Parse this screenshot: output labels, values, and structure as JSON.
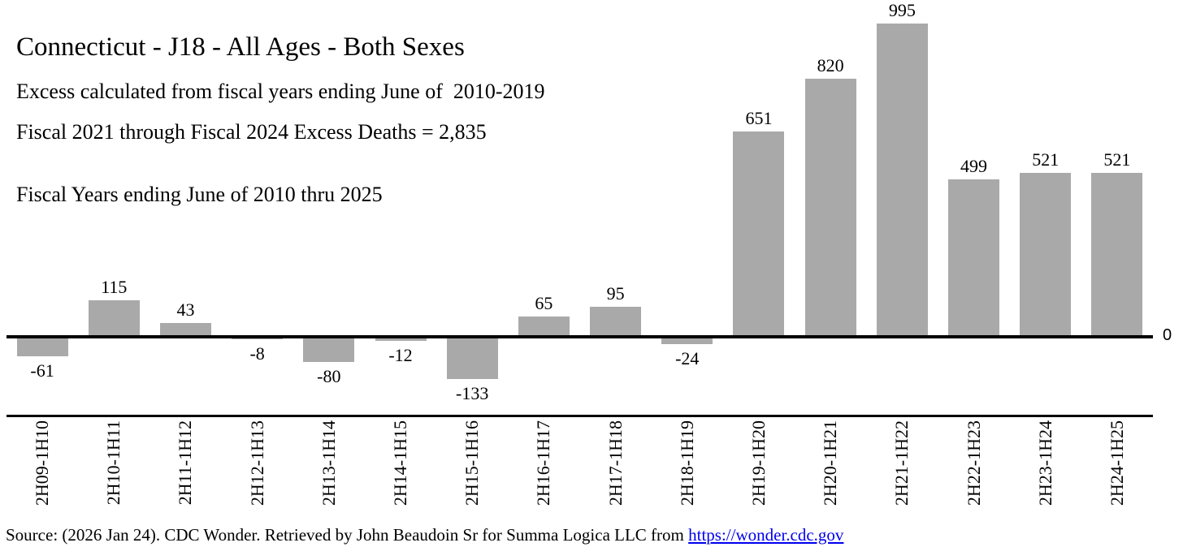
{
  "header": {
    "title": "Connecticut - J18 - All Ages - Both Sexes",
    "line_baseline": "Excess calculated from fiscal years ending June of  2010-2019",
    "line_excess_total": "Fiscal 2021 through Fiscal 2024 Excess Deaths = 2,835",
    "line_range": "Fiscal Years ending June of 2010 thru 2025"
  },
  "chart_data": {
    "type": "bar",
    "title": "Connecticut - J18 - All Ages - Both Sexes",
    "categories": [
      "2H09-1H10",
      "2H10-1H11",
      "2H11-1H12",
      "2H12-1H13",
      "2H13-1H14",
      "2H14-1H15",
      "2H15-1H16",
      "2H16-1H17",
      "2H17-1H18",
      "2H18-1H19",
      "2H19-1H20",
      "2H20-1H21",
      "2H21-1H22",
      "2H22-1H23",
      "2H23-1H24",
      "2H24-1H25"
    ],
    "values": [
      -61,
      115,
      43,
      -8,
      -80,
      -12,
      -133,
      65,
      95,
      -24,
      651,
      820,
      995,
      499,
      521,
      521
    ],
    "value_labels_shown": true,
    "baseline_value": 0,
    "baseline_tick_label": "0",
    "xlabel": "",
    "ylabel": "",
    "ylim": [
      -250,
      1070
    ],
    "grid": false,
    "legend": "none",
    "bar_color": "#a9a9a9",
    "axis_color": "#000000"
  },
  "footer": {
    "source_text": "Source: (2026 Jan 24). CDC Wonder. Retrieved by John Beaudoin Sr for Summa Logica LLC from ",
    "source_link_text": "https://wonder.cdc.gov",
    "link_color": "#0000ee"
  }
}
